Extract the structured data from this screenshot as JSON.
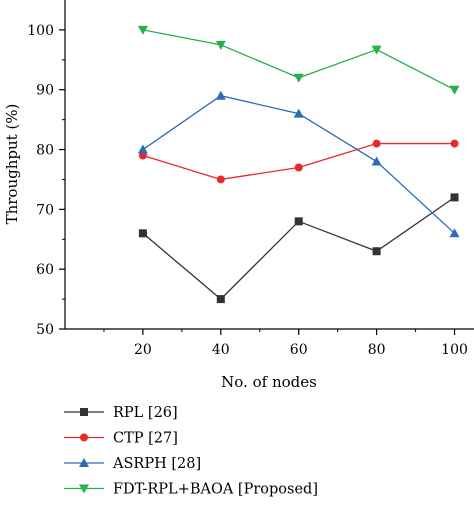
{
  "chart_data": {
    "type": "line",
    "title": "",
    "xlabel": "No. of nodes",
    "ylabel": "Throughput (%)",
    "x": [
      20,
      40,
      60,
      80,
      100
    ],
    "xlim": [
      0,
      105
    ],
    "ylim": [
      50,
      105
    ],
    "xticks": [
      20,
      40,
      60,
      80,
      100
    ],
    "yticks": [
      50,
      60,
      70,
      80,
      90,
      100
    ],
    "grid": false,
    "legend_position": "bottom-left",
    "series": [
      {
        "name": "RPL [26]",
        "values": [
          66,
          55,
          68,
          63,
          72
        ],
        "color": "#333333",
        "marker": "square"
      },
      {
        "name": "CTP [27]",
        "values": [
          79,
          75,
          77,
          81,
          81
        ],
        "color": "#e8292b",
        "marker": "circle"
      },
      {
        "name": "ASRPH [28]",
        "values": [
          80,
          89,
          86,
          78,
          66
        ],
        "color": "#2a6bb5",
        "marker": "triangle-up"
      },
      {
        "name": "FDT-RPL+BAOA [Proposed]",
        "values": [
          100,
          97.5,
          92,
          96.7,
          90
        ],
        "color": "#27b04b",
        "marker": "triangle-down"
      }
    ]
  }
}
